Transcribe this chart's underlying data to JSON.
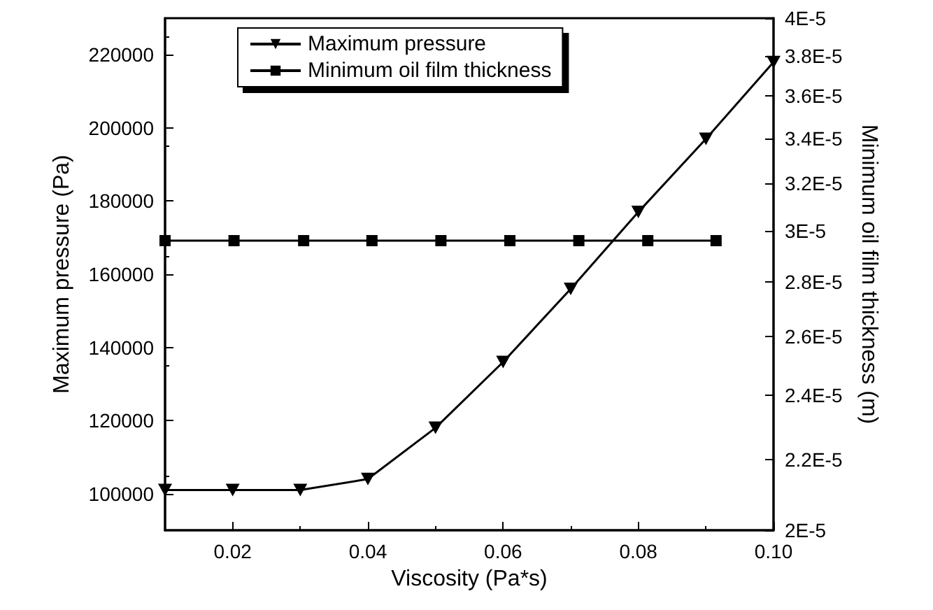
{
  "chart_data": {
    "type": "line",
    "xlabel": "Viscosity (Pa*s)",
    "ylabel": "Maximum pressure (Pa)",
    "y2label": "Minimum oil film thickness (m)",
    "xlim": [
      0.01,
      0.1
    ],
    "xticks": [
      0.02,
      0.04,
      0.06,
      0.08,
      {
        "value": 0.1,
        "label": "0.10"
      }
    ],
    "ylim": [
      90000,
      230000
    ],
    "yticks": [
      100000,
      120000,
      140000,
      160000,
      180000,
      200000,
      220000
    ],
    "y2lim": [
      2e-05,
      4e-05
    ],
    "y2ticks": [
      {
        "value": 2e-05,
        "label": "2E-5"
      },
      {
        "value": 2.2e-05,
        "label": "2.2E-5"
      },
      {
        "value": 2.4e-05,
        "label": "2.4E-5"
      },
      {
        "value": 2.6e-05,
        "label": "2.6E-5"
      },
      {
        "value": 2.8e-05,
        "label": "2.8E-5"
      },
      {
        "value": 3e-05,
        "label": "3E-5"
      },
      {
        "value": 3.2e-05,
        "label": "3.2E-5"
      },
      {
        "value": 3.4e-05,
        "label": "3.4E-5"
      },
      {
        "value": 3.6e-05,
        "label": "3.6E-5"
      },
      {
        "value": 3.8e-05,
        "label": "3.8E-5"
      },
      {
        "value": 4e-05,
        "label": "4E-5"
      }
    ],
    "log": "y2",
    "grid": false,
    "legend": "top left",
    "line_style": "solid",
    "series": [
      {
        "name": "Maximum pressure",
        "color": "#000000",
        "marker": "triangle",
        "x": [
          0.01,
          0.02,
          0.03,
          0.04,
          0.05,
          0.06,
          0.07,
          0.08,
          0.09,
          0.1
        ],
        "values": [
          101000,
          101000,
          101000,
          104000,
          118000,
          136000,
          156000,
          177000,
          197000,
          218000
        ]
      },
      {
        "name": "Minimum oil film thickness",
        "color": "#000000",
        "marker": "square",
        "axis": "y2",
        "x": [
          0.01,
          0.0202,
          0.0305,
          0.0406,
          0.0508,
          0.061,
          0.0712,
          0.0814,
          0.0915
        ],
        "values": [
          2.96e-05,
          2.96e-05,
          2.96e-05,
          2.96e-05,
          2.96e-05,
          2.96e-05,
          2.96e-05,
          2.96e-05,
          2.96e-05
        ]
      }
    ]
  }
}
